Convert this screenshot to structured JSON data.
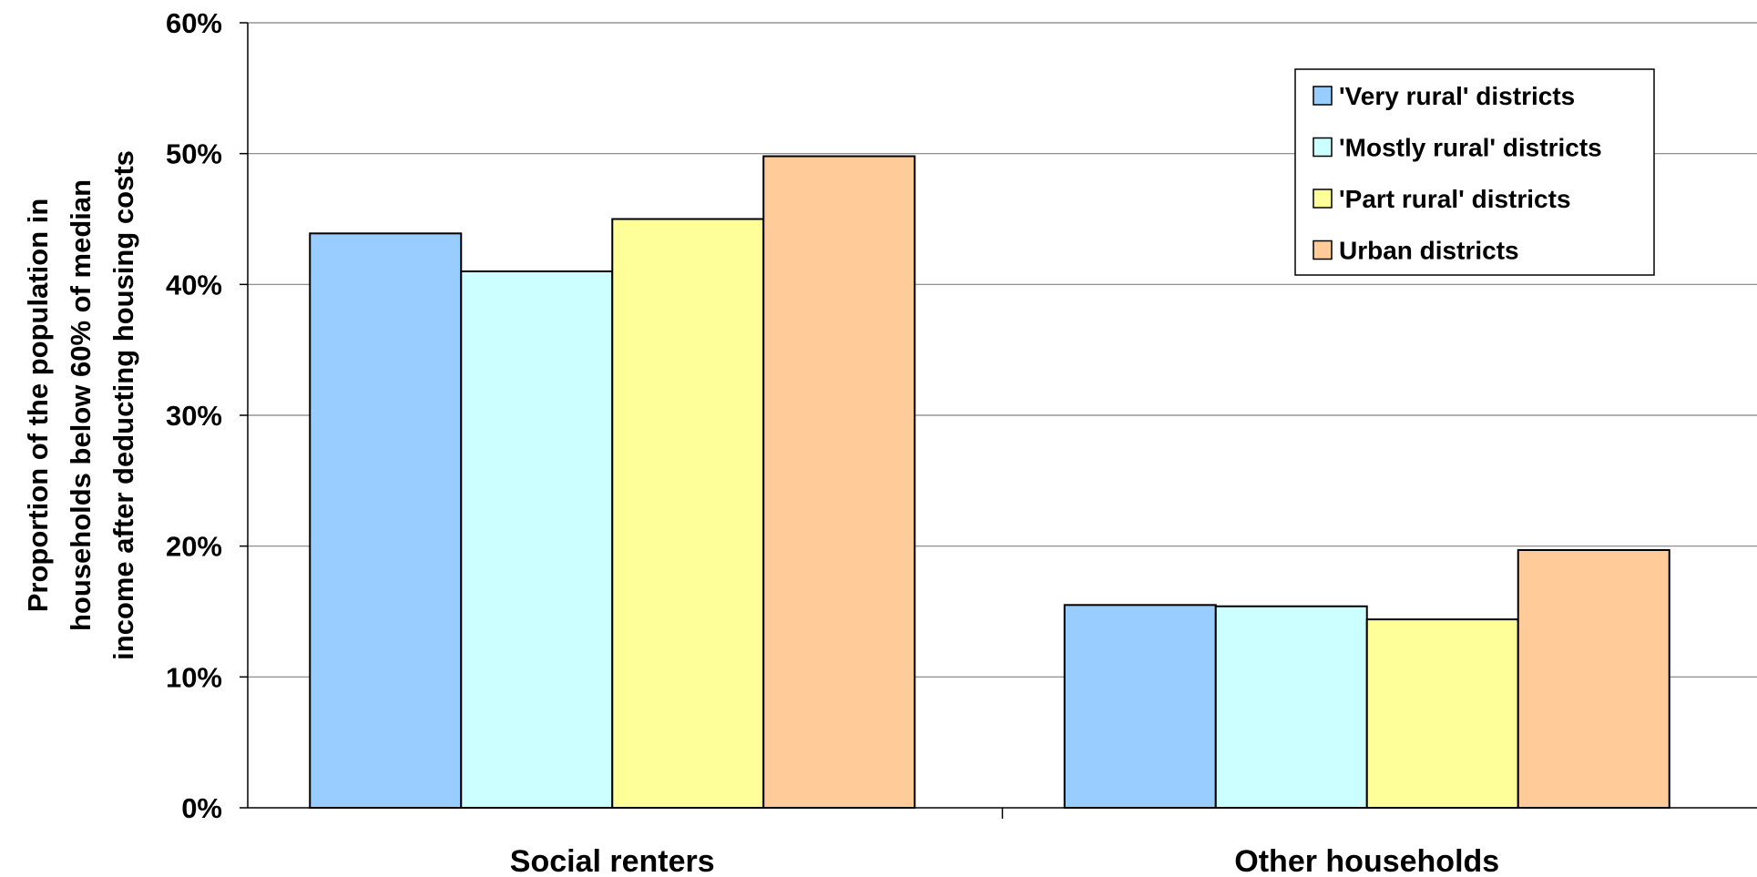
{
  "chart_data": {
    "type": "bar",
    "title": "",
    "xlabel": "",
    "ylabel": "Proportion of the population in households below 60% of median income after deducting housing costs",
    "ylabel_lines": [
      "Proportion of the population in",
      "households below 60% of median",
      "income after deducting housing costs"
    ],
    "categories": [
      "Social renters",
      "Other households"
    ],
    "series": [
      {
        "name": "'Very rural' districts",
        "values": [
          43.9,
          15.5
        ],
        "color": "#99ccff"
      },
      {
        "name": "'Mostly rural' districts",
        "values": [
          41.0,
          15.4
        ],
        "color": "#ccffff"
      },
      {
        "name": "'Part rural' districts",
        "values": [
          45.0,
          14.4
        ],
        "color": "#ffff99"
      },
      {
        "name": "Urban districts",
        "values": [
          49.8,
          19.7
        ],
        "color": "#ffcc99"
      }
    ],
    "ylim": [
      0,
      60
    ],
    "yticks": [
      0,
      10,
      20,
      30,
      40,
      50,
      60
    ],
    "ytick_labels": [
      "0%",
      "10%",
      "20%",
      "30%",
      "40%",
      "50%",
      "60%"
    ],
    "grid": true,
    "legend": "top-right"
  }
}
